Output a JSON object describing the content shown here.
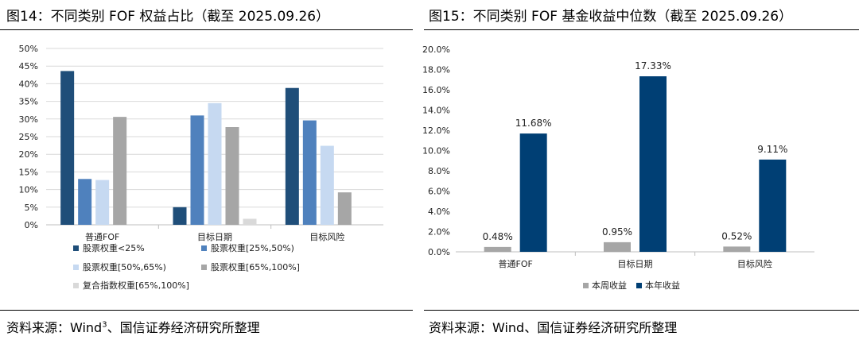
{
  "left": {
    "title": "图14：不同类别 FOF 权益占比（截至 2025.09.26）",
    "source_prefix": "资料来源：Wind",
    "source_sup": "3",
    "source_suffix": "、国信证券经济研究所整理"
  },
  "right": {
    "title": "图15：不同类别 FOF 基金收益中位数（截至 2025.09.26）",
    "source": "资料来源：Wind、国信证券经济研究所整理"
  },
  "chart_data": [
    {
      "type": "bar",
      "title": "",
      "xlabel": "",
      "ylabel": "",
      "categories": [
        "普通FOF",
        "目标日期",
        "目标风险"
      ],
      "ylim": [
        0,
        50
      ],
      "yticks": [
        0,
        5,
        10,
        15,
        20,
        25,
        30,
        35,
        40,
        45,
        50
      ],
      "ytick_labels": [
        "0%",
        "5%",
        "10%",
        "15%",
        "20%",
        "25%",
        "30%",
        "35%",
        "40%",
        "45%",
        "50%"
      ],
      "grid": true,
      "legend_position": "bottom",
      "series": [
        {
          "name": "股票权重<25%",
          "color": "#1F4E79",
          "values": [
            43.6,
            5.0,
            38.8
          ]
        },
        {
          "name": "股票权重[25%,50%)",
          "color": "#4F81BD",
          "values": [
            13.0,
            31.0,
            29.6
          ]
        },
        {
          "name": "股票权重[50%,65%)",
          "color": "#C6D9F1",
          "values": [
            12.7,
            34.5,
            22.4
          ]
        },
        {
          "name": "股票权重[65%,100%]",
          "color": "#A6A6A6",
          "values": [
            30.6,
            27.7,
            9.2
          ]
        },
        {
          "name": "复合指数权重[65%,100%]",
          "color": "#D9D9D9",
          "values": [
            0.0,
            1.7,
            0.0
          ]
        }
      ]
    },
    {
      "type": "bar",
      "title": "",
      "xlabel": "",
      "ylabel": "",
      "categories": [
        "普通FOF",
        "目标日期",
        "目标风险"
      ],
      "ylim": [
        0,
        20
      ],
      "yticks": [
        0,
        2,
        4,
        6,
        8,
        10,
        12,
        14,
        16,
        18,
        20
      ],
      "ytick_labels": [
        "0.0%",
        "2.0%",
        "4.0%",
        "6.0%",
        "8.0%",
        "10.0%",
        "12.0%",
        "14.0%",
        "16.0%",
        "18.0%",
        "20.0%"
      ],
      "grid": false,
      "legend_position": "bottom",
      "series": [
        {
          "name": "本周收益",
          "color": "#A6A6A6",
          "values": [
            0.48,
            0.95,
            0.52
          ],
          "labels": [
            "0.48%",
            "0.95%",
            "0.52%"
          ]
        },
        {
          "name": "本年收益",
          "color": "#003F74",
          "values": [
            11.68,
            17.33,
            9.11
          ],
          "labels": [
            "11.68%",
            "17.33%",
            "9.11%"
          ]
        }
      ]
    }
  ]
}
